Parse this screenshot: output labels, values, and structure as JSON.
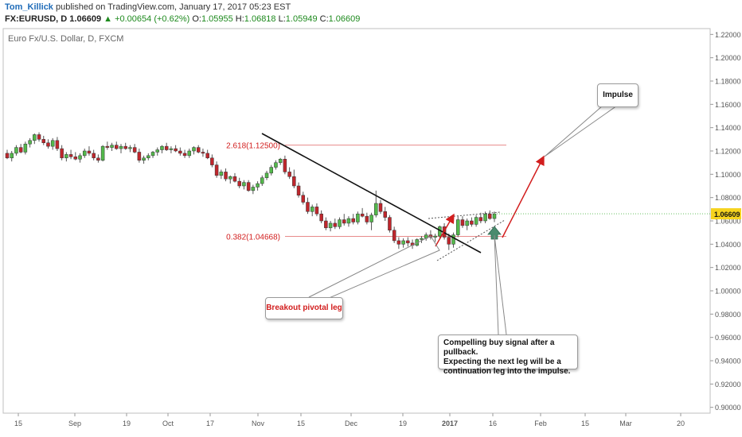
{
  "header": {
    "author": "Tom_Killick",
    "published_text": "published on TradingView.com, January 17, 2017 05:23 EST",
    "symbol": "FX:EURUSD, D",
    "last": "1.06609",
    "change_arrow": "▲",
    "change": "+0.00654 (+0.62%)",
    "open_label": "O:",
    "open": "1.05955",
    "high_label": "H:",
    "high": "1.06818",
    "low_label": "L:",
    "low": "1.05949",
    "close_label": "C:",
    "close": "1.06609"
  },
  "chart_data": {
    "type": "candlestick",
    "title": "Euro Fx/U.S. Dollar, D, FXCM",
    "ylim": [
      0.895,
      1.225
    ],
    "y_ticks": [
      "1.22000",
      "1.20000",
      "1.18000",
      "1.16000",
      "1.14000",
      "1.12000",
      "1.10000",
      "1.08000",
      "1.06000",
      "1.04000",
      "1.02000",
      "1.00000",
      "0.98000",
      "0.96000",
      "0.94000",
      "0.92000",
      "0.90000"
    ],
    "x_ticks": [
      "15",
      "Sep",
      "19",
      "Oct",
      "17",
      "Nov",
      "15",
      "Dec",
      "19",
      "2017",
      "16",
      "Feb",
      "15",
      "Mar",
      "20"
    ],
    "last_price_label": "1.06609",
    "colors": {
      "up": "#53b94b",
      "down": "#c0262c",
      "fib": "#e88a8a",
      "annotation": "#d21e1e"
    },
    "fib_levels": [
      {
        "label": "2.618(1.12500)",
        "value": 1.125
      },
      {
        "label": "0.382(1.04668)",
        "value": 1.04668
      }
    ],
    "annotations": {
      "breakout": "Breakout pivotal leg",
      "impulse": "Impulse",
      "compelling_line1": "Compelling buy signal after a pullback.",
      "compelling_line2": "Expecting the next leg will be a",
      "compelling_line3": "continuation leg into the impulse."
    },
    "candles": [
      [
        1.118,
        1.121,
        1.113,
        1.114
      ],
      [
        1.114,
        1.12,
        1.111,
        1.118
      ],
      [
        1.118,
        1.125,
        1.116,
        1.123
      ],
      [
        1.123,
        1.126,
        1.118,
        1.119
      ],
      [
        1.119,
        1.128,
        1.117,
        1.126
      ],
      [
        1.126,
        1.131,
        1.123,
        1.129
      ],
      [
        1.129,
        1.135,
        1.126,
        1.134
      ],
      [
        1.134,
        1.136,
        1.128,
        1.13
      ],
      [
        1.13,
        1.133,
        1.125,
        1.127
      ],
      [
        1.127,
        1.13,
        1.122,
        1.124
      ],
      [
        1.124,
        1.131,
        1.121,
        1.129
      ],
      [
        1.129,
        1.132,
        1.12,
        1.122
      ],
      [
        1.122,
        1.125,
        1.112,
        1.114
      ],
      [
        1.114,
        1.119,
        1.111,
        1.117
      ],
      [
        1.117,
        1.121,
        1.113,
        1.115
      ],
      [
        1.115,
        1.119,
        1.112,
        1.113
      ],
      [
        1.113,
        1.118,
        1.11,
        1.116
      ],
      [
        1.116,
        1.122,
        1.114,
        1.12
      ],
      [
        1.12,
        1.124,
        1.116,
        1.118
      ],
      [
        1.118,
        1.121,
        1.112,
        1.114
      ],
      [
        1.114,
        1.117,
        1.11,
        1.112
      ],
      [
        1.112,
        1.125,
        1.111,
        1.124
      ],
      [
        1.124,
        1.128,
        1.121,
        1.123
      ],
      [
        1.123,
        1.127,
        1.12,
        1.125
      ],
      [
        1.125,
        1.128,
        1.121,
        1.122
      ],
      [
        1.122,
        1.126,
        1.118,
        1.124
      ],
      [
        1.124,
        1.127,
        1.121,
        1.122
      ],
      [
        1.122,
        1.125,
        1.119,
        1.123
      ],
      [
        1.123,
        1.126,
        1.118,
        1.119
      ],
      [
        1.119,
        1.122,
        1.11,
        1.112
      ],
      [
        1.112,
        1.116,
        1.109,
        1.114
      ],
      [
        1.114,
        1.118,
        1.112,
        1.116
      ],
      [
        1.116,
        1.12,
        1.114,
        1.119
      ],
      [
        1.119,
        1.123,
        1.116,
        1.121
      ],
      [
        1.121,
        1.125,
        1.118,
        1.124
      ],
      [
        1.124,
        1.127,
        1.12,
        1.121
      ],
      [
        1.121,
        1.124,
        1.118,
        1.122
      ],
      [
        1.122,
        1.125,
        1.119,
        1.12
      ],
      [
        1.12,
        1.123,
        1.116,
        1.118
      ],
      [
        1.118,
        1.121,
        1.114,
        1.116
      ],
      [
        1.116,
        1.122,
        1.114,
        1.12
      ],
      [
        1.12,
        1.124,
        1.117,
        1.123
      ],
      [
        1.123,
        1.125,
        1.118,
        1.119
      ],
      [
        1.119,
        1.122,
        1.115,
        1.118
      ],
      [
        1.118,
        1.121,
        1.113,
        1.114
      ],
      [
        1.114,
        1.117,
        1.106,
        1.108
      ],
      [
        1.108,
        1.111,
        1.097,
        1.099
      ],
      [
        1.099,
        1.104,
        1.096,
        1.102
      ],
      [
        1.102,
        1.105,
        1.094,
        1.096
      ],
      [
        1.096,
        1.099,
        1.092,
        1.098
      ],
      [
        1.098,
        1.101,
        1.093,
        1.094
      ],
      [
        1.094,
        1.097,
        1.088,
        1.09
      ],
      [
        1.09,
        1.095,
        1.087,
        1.093
      ],
      [
        1.093,
        1.095,
        1.085,
        1.086
      ],
      [
        1.086,
        1.091,
        1.083,
        1.089
      ],
      [
        1.089,
        1.094,
        1.086,
        1.092
      ],
      [
        1.092,
        1.099,
        1.09,
        1.097
      ],
      [
        1.097,
        1.103,
        1.095,
        1.101
      ],
      [
        1.101,
        1.108,
        1.099,
        1.106
      ],
      [
        1.106,
        1.112,
        1.104,
        1.11
      ],
      [
        1.11,
        1.114,
        1.108,
        1.113
      ],
      [
        1.113,
        1.116,
        1.1,
        1.102
      ],
      [
        1.102,
        1.106,
        1.096,
        1.098
      ],
      [
        1.098,
        1.104,
        1.088,
        1.09
      ],
      [
        1.09,
        1.093,
        1.08,
        1.082
      ],
      [
        1.082,
        1.085,
        1.074,
        1.076
      ],
      [
        1.076,
        1.08,
        1.066,
        1.068
      ],
      [
        1.068,
        1.074,
        1.064,
        1.072
      ],
      [
        1.072,
        1.075,
        1.064,
        1.066
      ],
      [
        1.066,
        1.069,
        1.058,
        1.06
      ],
      [
        1.06,
        1.063,
        1.052,
        1.054
      ],
      [
        1.054,
        1.06,
        1.051,
        1.058
      ],
      [
        1.058,
        1.062,
        1.053,
        1.055
      ],
      [
        1.055,
        1.063,
        1.053,
        1.061
      ],
      [
        1.061,
        1.066,
        1.056,
        1.058
      ],
      [
        1.058,
        1.064,
        1.055,
        1.062
      ],
      [
        1.062,
        1.066,
        1.057,
        1.059
      ],
      [
        1.059,
        1.068,
        1.057,
        1.066
      ],
      [
        1.066,
        1.071,
        1.063,
        1.064
      ],
      [
        1.064,
        1.067,
        1.057,
        1.059
      ],
      [
        1.059,
        1.067,
        1.052,
        1.065
      ],
      [
        1.065,
        1.086,
        1.063,
        1.075
      ],
      [
        1.075,
        1.078,
        1.066,
        1.068
      ],
      [
        1.068,
        1.072,
        1.06,
        1.063
      ],
      [
        1.063,
        1.065,
        1.05,
        1.052
      ],
      [
        1.052,
        1.055,
        1.041,
        1.043
      ],
      [
        1.043,
        1.046,
        1.036,
        1.04
      ],
      [
        1.04,
        1.045,
        1.037,
        1.043
      ],
      [
        1.043,
        1.046,
        1.038,
        1.041
      ],
      [
        1.041,
        1.044,
        1.036,
        1.039
      ],
      [
        1.039,
        1.045,
        1.038,
        1.044
      ],
      [
        1.044,
        1.047,
        1.041,
        1.045
      ],
      [
        1.045,
        1.05,
        1.043,
        1.048
      ],
      [
        1.048,
        1.052,
        1.044,
        1.046
      ],
      [
        1.046,
        1.049,
        1.042,
        1.047
      ],
      [
        1.047,
        1.056,
        1.045,
        1.055
      ],
      [
        1.055,
        1.058,
        1.044,
        1.046
      ],
      [
        1.046,
        1.049,
        1.035,
        1.04
      ],
      [
        1.04,
        1.05,
        1.037,
        1.048
      ],
      [
        1.048,
        1.064,
        1.046,
        1.061
      ],
      [
        1.061,
        1.064,
        1.054,
        1.056
      ],
      [
        1.056,
        1.062,
        1.052,
        1.06
      ],
      [
        1.06,
        1.063,
        1.055,
        1.057
      ],
      [
        1.057,
        1.065,
        1.055,
        1.063
      ],
      [
        1.063,
        1.067,
        1.058,
        1.06
      ],
      [
        1.06,
        1.068,
        1.058,
        1.066
      ],
      [
        1.066,
        1.069,
        1.061,
        1.062
      ],
      [
        1.062,
        1.068,
        1.059,
        1.066
      ]
    ]
  }
}
